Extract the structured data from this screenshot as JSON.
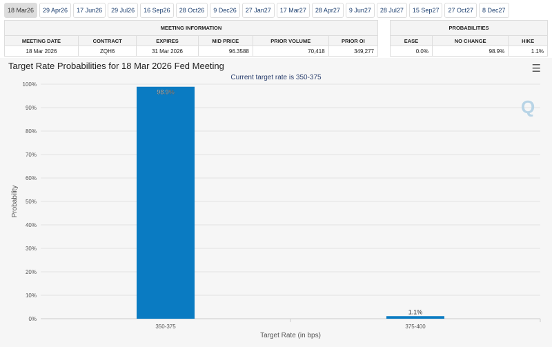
{
  "tabs": [
    "18 Mar26",
    "29 Apr26",
    "17 Jun26",
    "29 Jul26",
    "16 Sep26",
    "28 Oct26",
    "9 Dec26",
    "27 Jan27",
    "17 Mar27",
    "28 Apr27",
    "9 Jun27",
    "28 Jul27",
    "15 Sep27",
    "27 Oct27",
    "8 Dec27"
  ],
  "meeting_info": {
    "title": "MEETING INFORMATION",
    "headers": [
      "MEETING DATE",
      "CONTRACT",
      "EXPIRES",
      "MID PRICE",
      "PRIOR VOLUME",
      "PRIOR OI"
    ],
    "values": [
      "18 Mar 2026",
      "ZQH6",
      "31 Mar 2026",
      "96.3588",
      "70,418",
      "349,277"
    ]
  },
  "probabilities": {
    "title": "PROBABILITIES",
    "headers": [
      "EASE",
      "NO CHANGE",
      "HIKE"
    ],
    "values": [
      "0.0%",
      "98.9%",
      "1.1%"
    ]
  },
  "chart_title": "Target Rate Probabilities for 18 Mar 2026 Fed Meeting",
  "menu_icon": "hamburger-icon",
  "chart_data": {
    "type": "bar",
    "subtitle": "Current target rate is 350-375",
    "categories": [
      "350-375",
      "375-400"
    ],
    "values": [
      98.9,
      1.1
    ],
    "data_labels": [
      "98.9%",
      "1.1%"
    ],
    "xlabel": "Target Rate (in bps)",
    "ylabel": "Probability",
    "ylim": [
      0,
      100
    ],
    "yticks": [
      "0%",
      "10%",
      "20%",
      "30%",
      "40%",
      "50%",
      "60%",
      "70%",
      "80%",
      "90%",
      "100%"
    ],
    "grid": true,
    "color": "#0a7bc2"
  }
}
